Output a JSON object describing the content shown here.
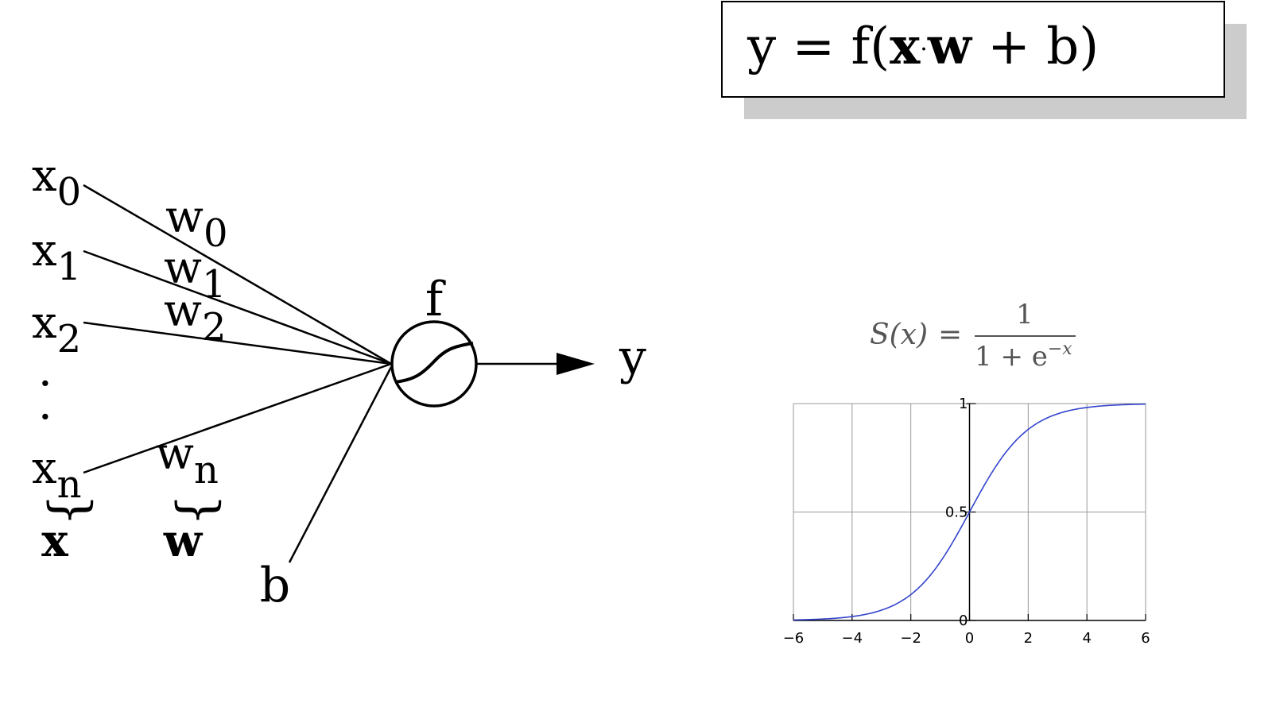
{
  "formula": {
    "prefix": "y = f(",
    "x": "x",
    "dot": "·",
    "w": "w",
    "suffix": " + b)"
  },
  "neuron": {
    "inputs": [
      {
        "var": "x",
        "sub": "0"
      },
      {
        "var": "x",
        "sub": "1"
      },
      {
        "var": "x",
        "sub": "2"
      },
      {
        "var": "x",
        "sub": "n"
      }
    ],
    "weights": [
      {
        "var": "w",
        "sub": "0"
      },
      {
        "var": "w",
        "sub": "1"
      },
      {
        "var": "w",
        "sub": "2"
      },
      {
        "var": "w",
        "sub": "n"
      }
    ],
    "ellipsis": [
      "·",
      "·"
    ],
    "brace": "}",
    "x_vector_label": "x",
    "w_vector_label": "w",
    "bias": "b",
    "function": "f",
    "output": "y"
  },
  "sigmoid_formula": {
    "lhs": "S(x)",
    "equals": "=",
    "numerator": "1",
    "denominator_base": "1 + e",
    "exponent": "−x"
  },
  "chart_data": {
    "type": "line",
    "function": "1/(1+e^(-x))",
    "xlim": [
      -6,
      6
    ],
    "ylim": [
      0,
      1
    ],
    "x_ticks": [
      "−6",
      "−4",
      "−2",
      "0",
      "2",
      "4",
      "6"
    ],
    "y_ticks": [
      "0",
      "0.5",
      "1"
    ],
    "grid": true,
    "series": [
      {
        "x": [
          -6,
          -5,
          -4,
          -3,
          -2,
          -1,
          0,
          1,
          2,
          3,
          4,
          5,
          6
        ],
        "values": [
          0.0025,
          0.0067,
          0.018,
          0.047,
          0.119,
          0.269,
          0.5,
          0.731,
          0.881,
          0.953,
          0.982,
          0.9933,
          0.9975
        ],
        "color": "#3344cc"
      }
    ],
    "title": "",
    "xlabel": "",
    "ylabel": ""
  }
}
